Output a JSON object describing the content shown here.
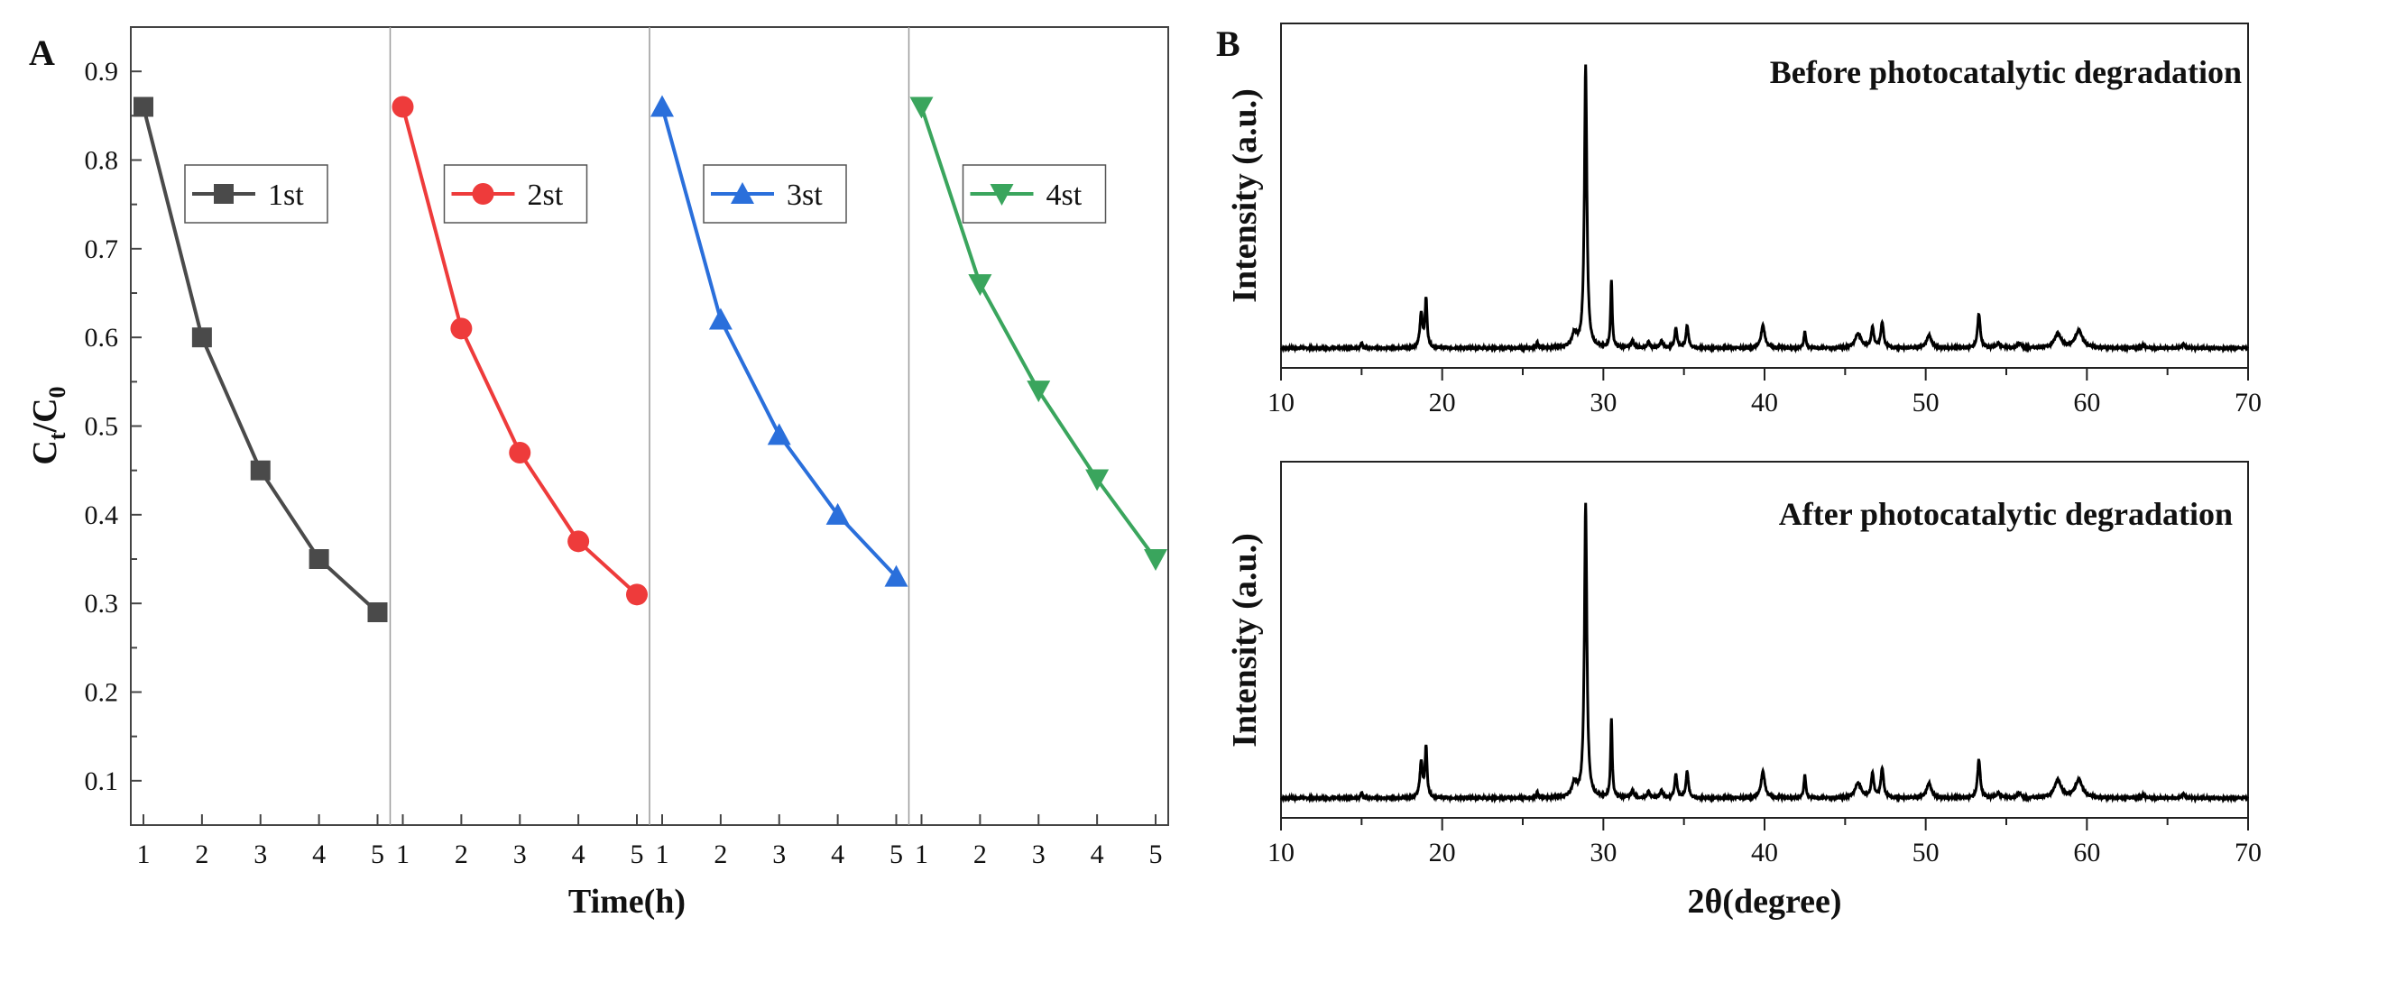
{
  "figure": {
    "panel_a_letter": "A",
    "panel_b_letter": "B"
  },
  "chart_data": [
    {
      "type": "line",
      "panel": "A",
      "title": "",
      "xlabel": "Time(h)",
      "ylabel_main": "C",
      "ylabel_sub1": "t",
      "ylabel_mid": "/C",
      "ylabel_sub2": "0",
      "ylim": [
        0.05,
        0.95
      ],
      "yticks": [
        "0.1",
        "0.2",
        "0.3",
        "0.4",
        "0.5",
        "0.6",
        "0.7",
        "0.8",
        "0.9"
      ],
      "ytick_values": [
        0.1,
        0.2,
        0.3,
        0.4,
        0.5,
        0.6,
        0.7,
        0.8,
        0.9
      ],
      "xticks": [
        "1",
        "2",
        "3",
        "4",
        "5"
      ],
      "x": [
        1,
        2,
        3,
        4,
        5
      ],
      "legend_location": "top of each sub-panel",
      "series": [
        {
          "name": "1st",
          "color": "#4a4a4a",
          "marker": "square",
          "values": [
            0.86,
            0.6,
            0.45,
            0.35,
            0.29
          ]
        },
        {
          "name": "2st",
          "color": "#ee3b3b",
          "marker": "circle",
          "values": [
            0.86,
            0.61,
            0.47,
            0.37,
            0.31
          ]
        },
        {
          "name": "3st",
          "color": "#2a6fdb",
          "marker": "triangle-up",
          "values": [
            0.86,
            0.62,
            0.49,
            0.4,
            0.33
          ]
        },
        {
          "name": "4st",
          "color": "#3aa55d",
          "marker": "triangle-down",
          "values": [
            0.86,
            0.66,
            0.54,
            0.44,
            0.35
          ]
        }
      ]
    },
    {
      "type": "line",
      "panel": "B-top",
      "title": "Before photocatalytic degradation",
      "xlabel": "",
      "ylabel": "Intensity (a.u.)",
      "xlim": [
        10,
        70
      ],
      "xticks": [
        "10",
        "20",
        "30",
        "40",
        "50",
        "60",
        "70"
      ],
      "xtick_values": [
        10,
        20,
        30,
        40,
        50,
        60,
        70
      ],
      "ylim": [
        0,
        1.1
      ],
      "baseline": 0.03,
      "color": "#000000",
      "peaks": [
        {
          "x": 15.0,
          "y": 0.02,
          "w": 0.12
        },
        {
          "x": 18.7,
          "y": 0.12,
          "w": 0.2
        },
        {
          "x": 19.0,
          "y": 0.17,
          "w": 0.15
        },
        {
          "x": 25.9,
          "y": 0.02,
          "w": 0.12
        },
        {
          "x": 28.2,
          "y": 0.05,
          "w": 0.35
        },
        {
          "x": 28.9,
          "y": 1.0,
          "w": 0.18
        },
        {
          "x": 30.5,
          "y": 0.24,
          "w": 0.12
        },
        {
          "x": 31.8,
          "y": 0.025,
          "w": 0.2
        },
        {
          "x": 32.8,
          "y": 0.02,
          "w": 0.2
        },
        {
          "x": 33.6,
          "y": 0.025,
          "w": 0.2
        },
        {
          "x": 34.5,
          "y": 0.07,
          "w": 0.18
        },
        {
          "x": 35.2,
          "y": 0.08,
          "w": 0.18
        },
        {
          "x": 39.9,
          "y": 0.08,
          "w": 0.28
        },
        {
          "x": 42.5,
          "y": 0.06,
          "w": 0.14
        },
        {
          "x": 45.8,
          "y": 0.05,
          "w": 0.45
        },
        {
          "x": 46.7,
          "y": 0.07,
          "w": 0.2
        },
        {
          "x": 47.3,
          "y": 0.09,
          "w": 0.2
        },
        {
          "x": 50.2,
          "y": 0.045,
          "w": 0.35
        },
        {
          "x": 53.3,
          "y": 0.12,
          "w": 0.2
        },
        {
          "x": 54.5,
          "y": 0.015,
          "w": 0.3
        },
        {
          "x": 55.8,
          "y": 0.015,
          "w": 0.3
        },
        {
          "x": 58.2,
          "y": 0.05,
          "w": 0.5
        },
        {
          "x": 59.5,
          "y": 0.06,
          "w": 0.55
        },
        {
          "x": 63.5,
          "y": 0.01,
          "w": 0.2
        },
        {
          "x": 66.0,
          "y": 0.015,
          "w": 0.2
        }
      ]
    },
    {
      "type": "line",
      "panel": "B-bottom",
      "title": "After photocatalytic degradation",
      "xlabel": "2θ(degree)",
      "ylabel": "Intensity (a.u.)",
      "xlim": [
        10,
        70
      ],
      "xticks": [
        "10",
        "20",
        "30",
        "40",
        "50",
        "60",
        "70"
      ],
      "xtick_values": [
        10,
        20,
        30,
        40,
        50,
        60,
        70
      ],
      "ylim": [
        0,
        1.1
      ],
      "baseline": 0.03,
      "color": "#000000",
      "peaks": [
        {
          "x": 15.0,
          "y": 0.02,
          "w": 0.12
        },
        {
          "x": 18.7,
          "y": 0.12,
          "w": 0.2
        },
        {
          "x": 19.0,
          "y": 0.17,
          "w": 0.15
        },
        {
          "x": 25.9,
          "y": 0.02,
          "w": 0.12
        },
        {
          "x": 28.2,
          "y": 0.05,
          "w": 0.35
        },
        {
          "x": 28.9,
          "y": 1.0,
          "w": 0.18
        },
        {
          "x": 30.5,
          "y": 0.27,
          "w": 0.12
        },
        {
          "x": 31.8,
          "y": 0.025,
          "w": 0.2
        },
        {
          "x": 32.8,
          "y": 0.02,
          "w": 0.2
        },
        {
          "x": 33.6,
          "y": 0.025,
          "w": 0.2
        },
        {
          "x": 34.5,
          "y": 0.08,
          "w": 0.18
        },
        {
          "x": 35.2,
          "y": 0.09,
          "w": 0.18
        },
        {
          "x": 39.9,
          "y": 0.09,
          "w": 0.28
        },
        {
          "x": 42.5,
          "y": 0.08,
          "w": 0.14
        },
        {
          "x": 45.8,
          "y": 0.05,
          "w": 0.45
        },
        {
          "x": 46.7,
          "y": 0.08,
          "w": 0.2
        },
        {
          "x": 47.3,
          "y": 0.1,
          "w": 0.2
        },
        {
          "x": 50.2,
          "y": 0.05,
          "w": 0.35
        },
        {
          "x": 53.3,
          "y": 0.13,
          "w": 0.2
        },
        {
          "x": 54.5,
          "y": 0.015,
          "w": 0.3
        },
        {
          "x": 55.8,
          "y": 0.015,
          "w": 0.3
        },
        {
          "x": 58.2,
          "y": 0.06,
          "w": 0.5
        },
        {
          "x": 59.5,
          "y": 0.06,
          "w": 0.55
        },
        {
          "x": 63.5,
          "y": 0.01,
          "w": 0.2
        },
        {
          "x": 66.0,
          "y": 0.015,
          "w": 0.2
        }
      ]
    }
  ]
}
